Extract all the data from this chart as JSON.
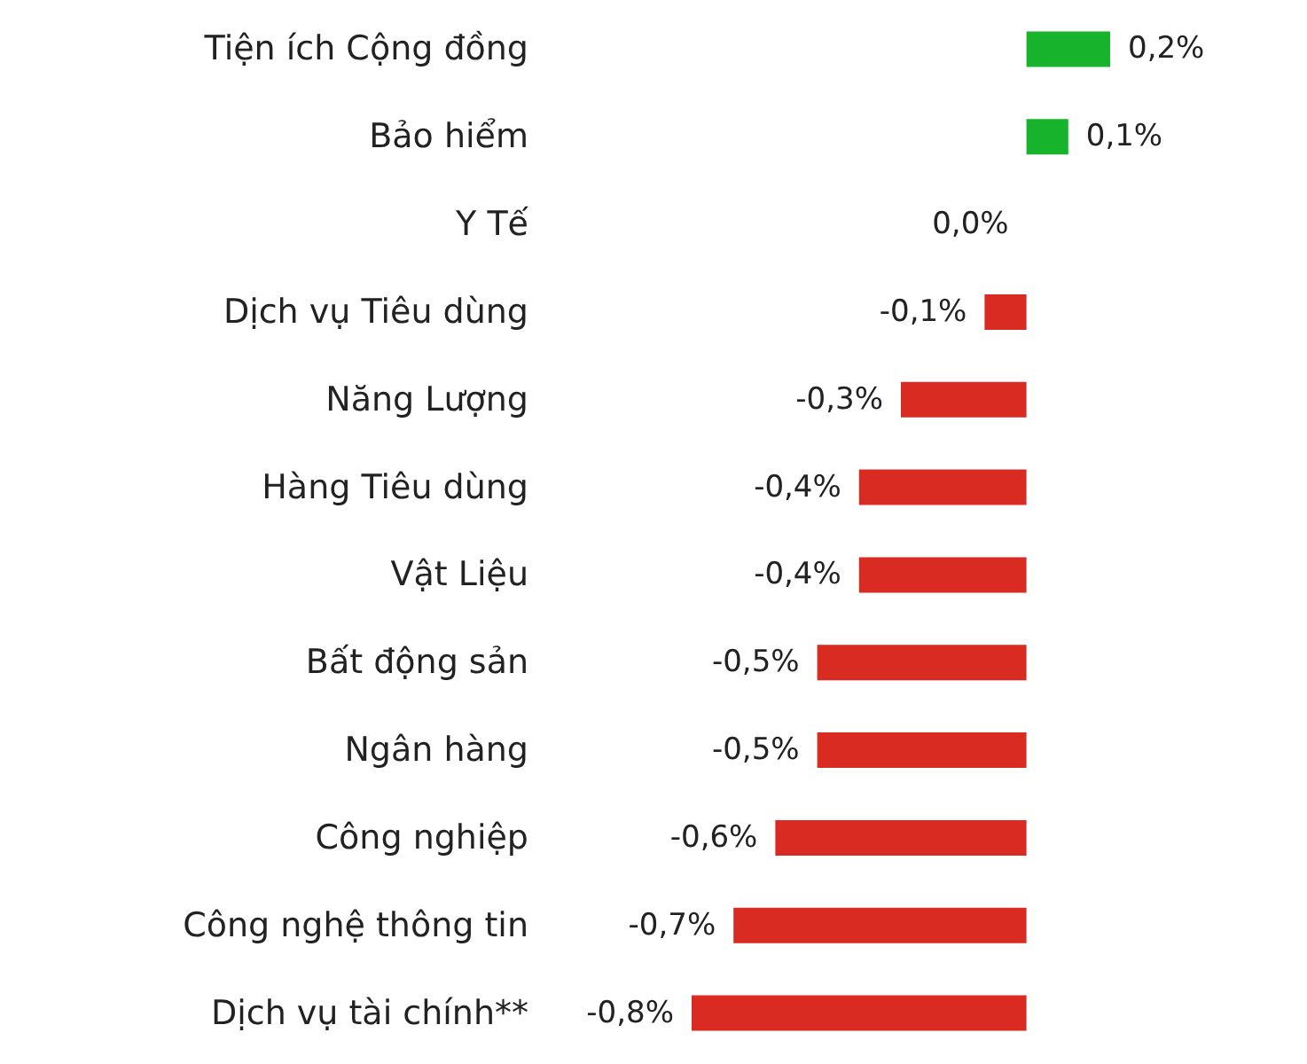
{
  "chart_data": {
    "type": "bar",
    "orientation": "horizontal",
    "categories": [
      "Tiện ích Cộng đồng",
      "Bảo hiểm",
      "Y Tế",
      "Dịch vụ Tiêu dùng",
      "Năng Lượng",
      "Hàng Tiêu dùng",
      "Vật Liệu",
      "Bất động sản",
      "Ngân hàng",
      "Công nghiệp",
      "Công nghệ thông tin",
      "Dịch vụ tài chính**"
    ],
    "values": [
      0.2,
      0.1,
      0.0,
      -0.1,
      -0.3,
      -0.4,
      -0.4,
      -0.5,
      -0.5,
      -0.6,
      -0.7,
      -0.8
    ],
    "value_labels": [
      "0,2%",
      "0,1%",
      "0,0%",
      "-0,1%",
      "-0,3%",
      "-0,4%",
      "-0,4%",
      "-0,5%",
      "-0,5%",
      "-0,6%",
      "-0,7%",
      "-0,8%"
    ],
    "colors": [
      "#17b32c",
      "#17b32c",
      "#d92b21",
      "#d92b21",
      "#d92b21",
      "#d92b21",
      "#d92b21",
      "#d92b21",
      "#d92b21",
      "#d92b21",
      "#d92b21",
      "#d92b21"
    ]
  }
}
